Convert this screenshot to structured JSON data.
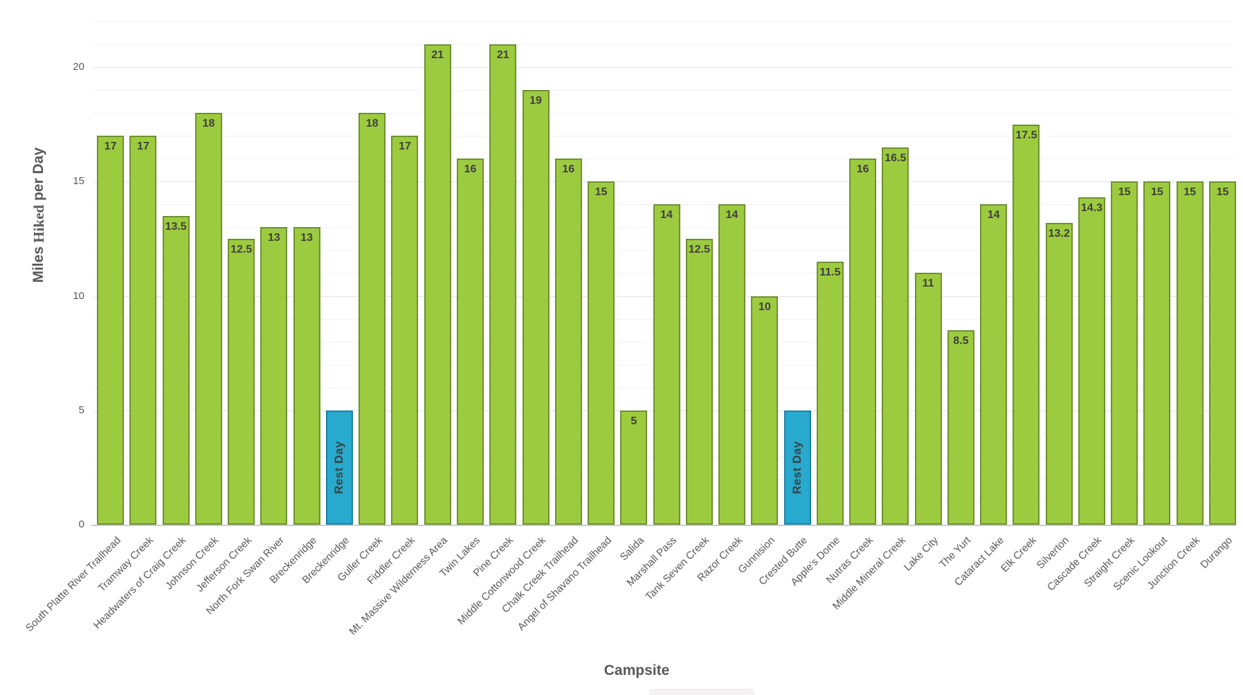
{
  "chart_data": {
    "type": "bar",
    "title": "",
    "xlabel": "Campsite",
    "ylabel": "Miles Hiked per Day",
    "ylim": [
      0,
      22
    ],
    "yticks": [
      0,
      5,
      10,
      15,
      20
    ],
    "grid": "horizontal gridlines every 1 mile, light gray",
    "legend": "none",
    "categories": [
      "South Platte River Trailhead",
      "Tramway Creek",
      "Headwaters of Craig Creek",
      "Johnson Creek",
      "Jefferson Creek",
      "North Fork Swan River",
      "Breckenridge",
      "Breckenridge",
      "Guller Creek",
      "Fiddler Creek",
      "Mt. Massive Wilderness Area",
      "Twin Lakes",
      "Pine Creek",
      "Middle Cottonwood Creek",
      "Chalk Creek Trailhead",
      "Angel of Shavano Trailhead",
      "Salida",
      "Marshall Pass",
      "Tank Seven Creek",
      "Razor Creek",
      "Gunnision",
      "Crested Butte",
      "Apple's Dome",
      "Nutras Creek",
      "Middle Mineral Creek",
      "Lake City",
      "The Yurt",
      "Cataract Lake",
      "Elk Creek",
      "Silverton",
      "Cascade Creek",
      "Straight Creek",
      "Scenic Lookout",
      "Junction Creek",
      "Durango"
    ],
    "values": [
      17,
      17,
      13.5,
      18,
      12.5,
      13,
      13,
      5,
      18,
      17,
      21,
      16,
      21,
      19,
      16,
      15,
      5,
      14,
      12.5,
      14,
      10,
      5,
      11.5,
      16,
      16.5,
      11,
      8.5,
      14,
      17.5,
      13.2,
      14.3,
      15,
      15,
      15,
      15
    ],
    "rest_day_indices": [
      7,
      21
    ],
    "rest_day_label": "Rest Day"
  },
  "colors": {
    "bar_fill": "#9DCB3F",
    "bar_border": "#6F9030",
    "rest_fill": "#28A9CE",
    "rest_border": "#1B81A4",
    "value_label": "#3F3F3F",
    "axis_text": "#595959",
    "gridline_minor": "#F1F1F1",
    "gridline_major": "#E2E2E2",
    "baseline": "#C9CDCF"
  }
}
